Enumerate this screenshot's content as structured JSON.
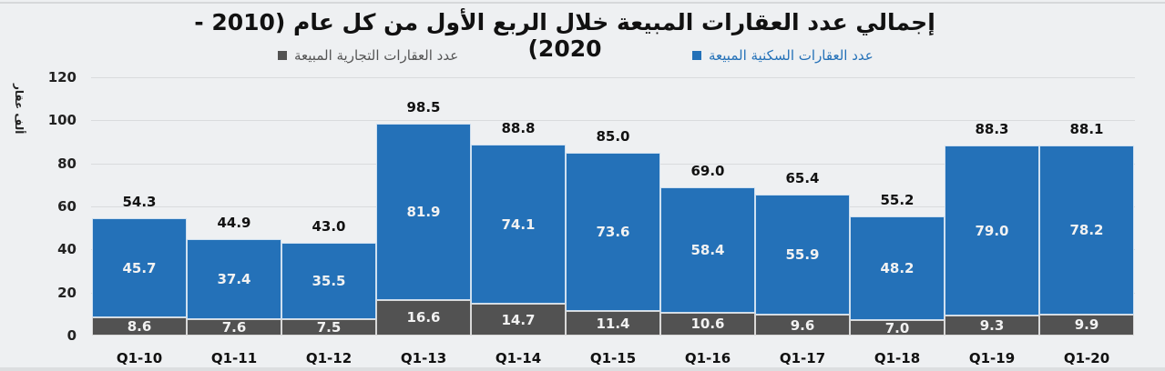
{
  "title": "إجمالي عدد العقارات المبيعة خلال الربع الأول من كل عام (2010 - 2020)",
  "legend": {
    "residential": "عدد العقارات السكنية المبيعة",
    "commercial": "عدد العقارات التجارية المبيعة"
  },
  "y_axis_label": "ألف عقار",
  "colors": {
    "residential": "#2471b8",
    "commercial": "#525252"
  },
  "chart_data": {
    "type": "bar",
    "stacked": true,
    "title": "إجمالي عدد العقارات المبيعة خلال الربع الأول من كل عام (2010 - 2020)",
    "xlabel": "",
    "ylabel": "ألف عقار",
    "ylim": [
      0,
      120
    ],
    "yticks": [
      0,
      20,
      40,
      60,
      80,
      100,
      120
    ],
    "grid": true,
    "legend_position": "top",
    "categories": [
      "Q1-10",
      "Q1-11",
      "Q1-12",
      "Q1-13",
      "Q1-14",
      "Q1-15",
      "Q1-16",
      "Q1-17",
      "Q1-18",
      "Q1-19",
      "Q1-20"
    ],
    "series": [
      {
        "name": "عدد العقارات التجارية المبيعة",
        "values": [
          8.6,
          7.6,
          7.5,
          16.6,
          14.7,
          11.4,
          10.6,
          9.6,
          7.0,
          9.3,
          9.9
        ]
      },
      {
        "name": "عدد العقارات السكنية المبيعة",
        "values": [
          45.7,
          37.4,
          35.5,
          81.9,
          74.1,
          73.6,
          58.4,
          55.9,
          48.2,
          79.0,
          78.2
        ]
      }
    ],
    "totals": [
      54.3,
      44.9,
      43.0,
      98.5,
      88.8,
      85.0,
      69.0,
      65.4,
      55.2,
      88.3,
      88.1
    ]
  }
}
